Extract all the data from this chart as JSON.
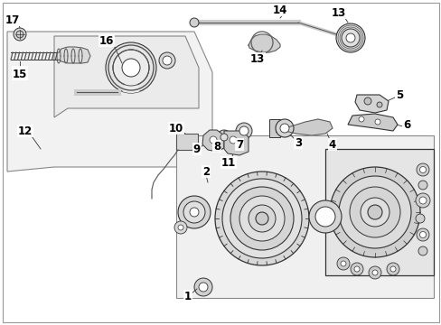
{
  "background_color": "#ffffff",
  "line_color": "#333333",
  "text_color": "#000000",
  "font_size": 8.5,
  "panel_fill": "#f4f4f4",
  "panel_edge": "#555555",
  "part_color": "#666666",
  "part_fill": "#e8e8e8"
}
